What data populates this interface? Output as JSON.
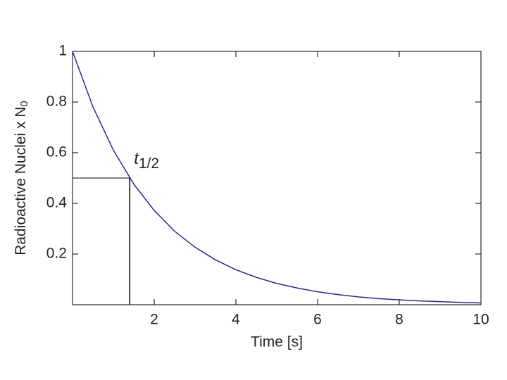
{
  "chart_data": {
    "type": "line",
    "xlabel": "Time [s]",
    "ylabel": {
      "text": "Radioactive Nuclei x N",
      "subscript": "0"
    },
    "x": [
      0,
      0.5,
      1,
      1.5,
      2,
      2.5,
      3,
      3.5,
      4,
      4.5,
      5,
      5.5,
      6,
      6.5,
      7,
      7.5,
      8,
      8.5,
      9,
      9.5,
      10
    ],
    "series": [
      {
        "color": "#33229a",
        "values": [
          1,
          0.781,
          0.61,
          0.476,
          0.372,
          0.29,
          0.227,
          0.177,
          0.138,
          0.108,
          0.084,
          0.066,
          0.051,
          0.04,
          0.031,
          0.024,
          0.019,
          0.015,
          0.012,
          0.009,
          0.007
        ]
      }
    ],
    "half_life": {
      "x": 1.4,
      "y": 0.5,
      "label": "t",
      "subscript": "1/2"
    },
    "xlim": [
      0,
      10
    ],
    "ylim": [
      0,
      1
    ],
    "xticks": [
      2,
      4,
      6,
      8,
      10
    ],
    "yticks": [
      0.2,
      0.4,
      0.6,
      0.8,
      1
    ]
  }
}
